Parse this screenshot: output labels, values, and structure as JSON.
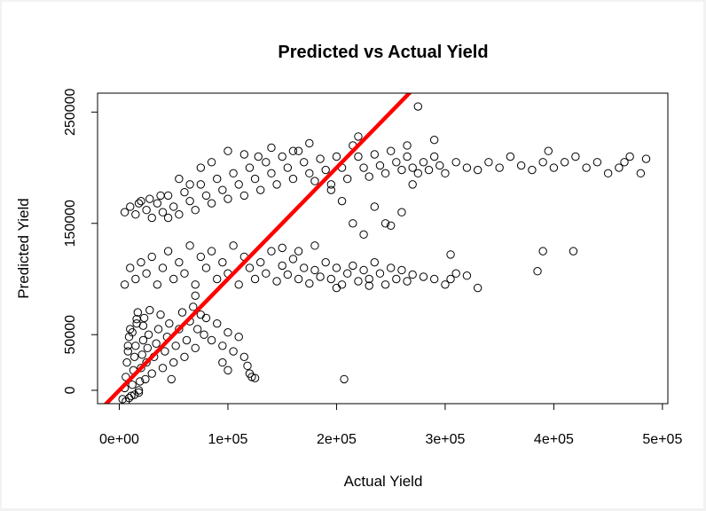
{
  "chart_data": {
    "type": "scatter",
    "title": "Predicted vs Actual Yield",
    "xlabel": "Actual Yield",
    "ylabel": "Predicted Yield",
    "xlim": [
      -20000,
      505000
    ],
    "ylim": [
      -12000,
      267000
    ],
    "x_ticks": [
      0,
      100000,
      200000,
      300000,
      400000,
      500000
    ],
    "x_tick_labels": [
      "0e+00",
      "1e+05",
      "2e+05",
      "3e+05",
      "4e+05",
      "5e+05"
    ],
    "y_ticks": [
      0,
      50000,
      150000,
      250000
    ],
    "y_tick_labels": [
      "0",
      "50000",
      "150000",
      "250000"
    ],
    "point_marker": "open-circle",
    "point_color": "#000000",
    "reference_line": {
      "intercept": 0,
      "slope": 1,
      "color": "#ff0000"
    },
    "grid": false,
    "points": [
      [
        3000,
        -8000
      ],
      [
        5000,
        2000
      ],
      [
        6000,
        12000
      ],
      [
        7000,
        25000
      ],
      [
        8000,
        35000
      ],
      [
        9000,
        48000
      ],
      [
        10000,
        55000
      ],
      [
        11000,
        -5000
      ],
      [
        12000,
        5000
      ],
      [
        13000,
        18000
      ],
      [
        14000,
        30000
      ],
      [
        15000,
        40000
      ],
      [
        16000,
        60000
      ],
      [
        17000,
        70000
      ],
      [
        18000,
        -2000
      ],
      [
        19000,
        8000
      ],
      [
        20000,
        20000
      ],
      [
        21000,
        32000
      ],
      [
        22000,
        45000
      ],
      [
        23000,
        65000
      ],
      [
        24000,
        10000
      ],
      [
        25000,
        25000
      ],
      [
        26000,
        38000
      ],
      [
        27000,
        50000
      ],
      [
        28000,
        72000
      ],
      [
        30000,
        15000
      ],
      [
        32000,
        30000
      ],
      [
        34000,
        42000
      ],
      [
        36000,
        55000
      ],
      [
        38000,
        68000
      ],
      [
        40000,
        20000
      ],
      [
        42000,
        35000
      ],
      [
        44000,
        48000
      ],
      [
        46000,
        60000
      ],
      [
        48000,
        10000
      ],
      [
        50000,
        25000
      ],
      [
        52000,
        40000
      ],
      [
        55000,
        55000
      ],
      [
        58000,
        70000
      ],
      [
        60000,
        30000
      ],
      [
        62000,
        45000
      ],
      [
        65000,
        62000
      ],
      [
        68000,
        75000
      ],
      [
        70000,
        38000
      ],
      [
        72000,
        55000
      ],
      [
        75000,
        68000
      ],
      [
        78000,
        50000
      ],
      [
        80000,
        65000
      ],
      [
        85000,
        45000
      ],
      [
        90000,
        60000
      ],
      [
        95000,
        40000
      ],
      [
        100000,
        52000
      ],
      [
        105000,
        35000
      ],
      [
        110000,
        48000
      ],
      [
        115000,
        30000
      ],
      [
        120000,
        15000
      ],
      [
        122000,
        12000
      ],
      [
        125000,
        11000
      ],
      [
        118000,
        22000
      ],
      [
        70000,
        85000
      ],
      [
        6000,
        -10000
      ],
      [
        9000,
        -7000
      ],
      [
        14000,
        -4000
      ],
      [
        18000,
        0
      ],
      [
        8000,
        40000
      ],
      [
        12000,
        52000
      ],
      [
        16000,
        64000
      ],
      [
        22000,
        58000
      ],
      [
        5000,
        95000
      ],
      [
        10000,
        110000
      ],
      [
        15000,
        100000
      ],
      [
        20000,
        115000
      ],
      [
        25000,
        105000
      ],
      [
        30000,
        120000
      ],
      [
        35000,
        95000
      ],
      [
        40000,
        110000
      ],
      [
        45000,
        125000
      ],
      [
        50000,
        100000
      ],
      [
        55000,
        115000
      ],
      [
        60000,
        105000
      ],
      [
        65000,
        130000
      ],
      [
        70000,
        95000
      ],
      [
        75000,
        120000
      ],
      [
        80000,
        110000
      ],
      [
        85000,
        125000
      ],
      [
        90000,
        100000
      ],
      [
        95000,
        115000
      ],
      [
        100000,
        105000
      ],
      [
        105000,
        130000
      ],
      [
        110000,
        95000
      ],
      [
        115000,
        120000
      ],
      [
        120000,
        110000
      ],
      [
        125000,
        100000
      ],
      [
        130000,
        115000
      ],
      [
        135000,
        105000
      ],
      [
        140000,
        125000
      ],
      [
        145000,
        98000
      ],
      [
        150000,
        112000
      ],
      [
        155000,
        104000
      ],
      [
        160000,
        118000
      ],
      [
        165000,
        100000
      ],
      [
        170000,
        110000
      ],
      [
        175000,
        96000
      ],
      [
        180000,
        108000
      ],
      [
        185000,
        102000
      ],
      [
        190000,
        115000
      ],
      [
        195000,
        100000
      ],
      [
        200000,
        110000
      ],
      [
        205000,
        95000
      ],
      [
        210000,
        105000
      ],
      [
        215000,
        112000
      ],
      [
        220000,
        98000
      ],
      [
        225000,
        108000
      ],
      [
        230000,
        100000
      ],
      [
        235000,
        115000
      ],
      [
        240000,
        105000
      ],
      [
        245000,
        95000
      ],
      [
        250000,
        110000
      ],
      [
        255000,
        100000
      ],
      [
        260000,
        108000
      ],
      [
        265000,
        98000
      ],
      [
        270000,
        104000
      ],
      [
        280000,
        102000
      ],
      [
        290000,
        100000
      ],
      [
        300000,
        95000
      ],
      [
        305000,
        100000
      ],
      [
        310000,
        105000
      ],
      [
        320000,
        103000
      ],
      [
        330000,
        92000
      ],
      [
        305000,
        122000
      ],
      [
        385000,
        107000
      ],
      [
        390000,
        125000
      ],
      [
        418000,
        125000
      ],
      [
        150000,
        128000
      ],
      [
        165000,
        125000
      ],
      [
        180000,
        130000
      ],
      [
        200000,
        92000
      ],
      [
        230000,
        94000
      ],
      [
        5000,
        160000
      ],
      [
        10000,
        165000
      ],
      [
        15000,
        158000
      ],
      [
        20000,
        170000
      ],
      [
        25000,
        162000
      ],
      [
        30000,
        155000
      ],
      [
        35000,
        168000
      ],
      [
        40000,
        160000
      ],
      [
        45000,
        175000
      ],
      [
        50000,
        165000
      ],
      [
        55000,
        158000
      ],
      [
        60000,
        178000
      ],
      [
        65000,
        170000
      ],
      [
        70000,
        162000
      ],
      [
        75000,
        185000
      ],
      [
        80000,
        175000
      ],
      [
        85000,
        168000
      ],
      [
        90000,
        190000
      ],
      [
        95000,
        180000
      ],
      [
        100000,
        172000
      ],
      [
        105000,
        195000
      ],
      [
        110000,
        185000
      ],
      [
        115000,
        175000
      ],
      [
        120000,
        200000
      ],
      [
        125000,
        190000
      ],
      [
        130000,
        180000
      ],
      [
        135000,
        205000
      ],
      [
        140000,
        195000
      ],
      [
        145000,
        185000
      ],
      [
        150000,
        210000
      ],
      [
        155000,
        200000
      ],
      [
        160000,
        190000
      ],
      [
        165000,
        215000
      ],
      [
        170000,
        205000
      ],
      [
        175000,
        195000
      ],
      [
        180000,
        188000
      ],
      [
        185000,
        208000
      ],
      [
        190000,
        198000
      ],
      [
        195000,
        185000
      ],
      [
        200000,
        210000
      ],
      [
        205000,
        200000
      ],
      [
        210000,
        190000
      ],
      [
        215000,
        220000
      ],
      [
        220000,
        210000
      ],
      [
        225000,
        200000
      ],
      [
        230000,
        192000
      ],
      [
        235000,
        212000
      ],
      [
        240000,
        202000
      ],
      [
        245000,
        195000
      ],
      [
        250000,
        215000
      ],
      [
        255000,
        205000
      ],
      [
        260000,
        198000
      ],
      [
        265000,
        210000
      ],
      [
        270000,
        200000
      ],
      [
        275000,
        195000
      ],
      [
        280000,
        205000
      ],
      [
        285000,
        198000
      ],
      [
        290000,
        210000
      ],
      [
        295000,
        202000
      ],
      [
        300000,
        195000
      ],
      [
        310000,
        205000
      ],
      [
        320000,
        200000
      ],
      [
        330000,
        198000
      ],
      [
        340000,
        205000
      ],
      [
        350000,
        200000
      ],
      [
        360000,
        210000
      ],
      [
        370000,
        202000
      ],
      [
        380000,
        198000
      ],
      [
        390000,
        205000
      ],
      [
        395000,
        215000
      ],
      [
        400000,
        200000
      ],
      [
        410000,
        205000
      ],
      [
        420000,
        210000
      ],
      [
        430000,
        200000
      ],
      [
        440000,
        205000
      ],
      [
        450000,
        195000
      ],
      [
        460000,
        200000
      ],
      [
        465000,
        205000
      ],
      [
        470000,
        210000
      ],
      [
        480000,
        195000
      ],
      [
        485000,
        208000
      ],
      [
        275000,
        255000
      ],
      [
        220000,
        228000
      ],
      [
        245000,
        150000
      ],
      [
        250000,
        148000
      ],
      [
        235000,
        165000
      ],
      [
        225000,
        140000
      ],
      [
        260000,
        160000
      ],
      [
        215000,
        150000
      ],
      [
        205000,
        170000
      ],
      [
        270000,
        185000
      ],
      [
        290000,
        225000
      ],
      [
        265000,
        220000
      ],
      [
        195000,
        180000
      ],
      [
        175000,
        222000
      ],
      [
        160000,
        215000
      ],
      [
        140000,
        218000
      ],
      [
        128000,
        210000
      ],
      [
        115000,
        212000
      ],
      [
        100000,
        215000
      ],
      [
        85000,
        205000
      ],
      [
        75000,
        200000
      ],
      [
        65000,
        185000
      ],
      [
        55000,
        190000
      ],
      [
        45000,
        155000
      ],
      [
        38000,
        175000
      ],
      [
        28000,
        172000
      ],
      [
        18000,
        168000
      ],
      [
        207000,
        10000
      ],
      [
        100000,
        18000
      ],
      [
        95000,
        25000
      ]
    ]
  }
}
